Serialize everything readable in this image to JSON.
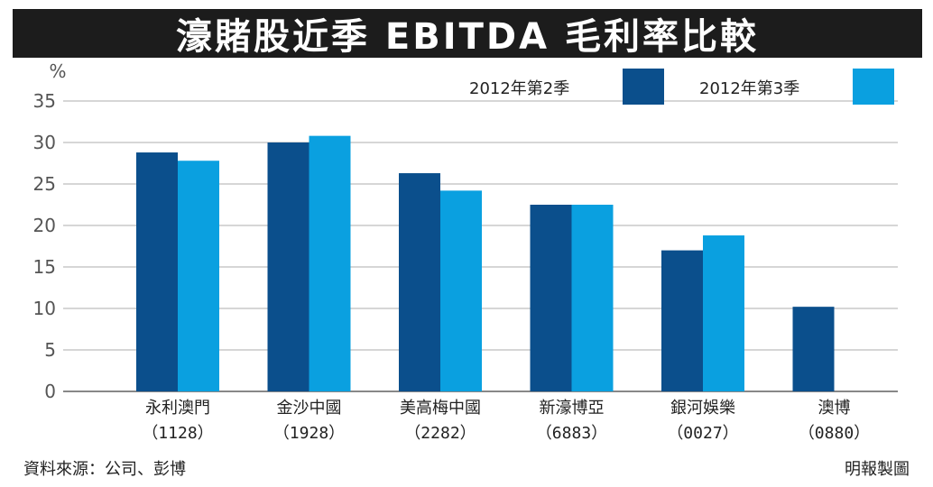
{
  "title": "濠賭股近季 EBITDA 毛利率比較",
  "source": "資料來源：公司、彭博",
  "credit": "明報製圖",
  "colors": {
    "series_q2": "#0b4f8c",
    "series_q3": "#0aa0e0",
    "highlight_label": "#e8262b",
    "grid": "#c8c8c8",
    "title_bg": "#1c1c1c"
  },
  "chart_data": {
    "type": "bar",
    "ylabel": "%",
    "ylim": [
      0,
      35
    ],
    "yticks": [
      0,
      5,
      10,
      15,
      20,
      25,
      30,
      35
    ],
    "grid": true,
    "legend_position": "top-right",
    "categories": [
      {
        "name": "永利澳門",
        "code": "（1128）",
        "highlight": false
      },
      {
        "name": "金沙中國",
        "code": "（1928）",
        "highlight": true
      },
      {
        "name": "美高梅中國",
        "code": "（2282）",
        "highlight": false
      },
      {
        "name": "新濠博亞",
        "code": "（6883）",
        "highlight": false
      },
      {
        "name": "銀河娛樂",
        "code": "（0027）",
        "highlight": false
      },
      {
        "name": "澳博",
        "code": "（0880）",
        "highlight": false
      }
    ],
    "series": [
      {
        "name": "2012年第2季",
        "values": [
          28.8,
          30.0,
          26.3,
          22.5,
          17.0,
          10.2
        ]
      },
      {
        "name": "2012年第3季",
        "values": [
          27.8,
          30.8,
          24.2,
          22.5,
          18.8,
          null
        ]
      }
    ]
  }
}
